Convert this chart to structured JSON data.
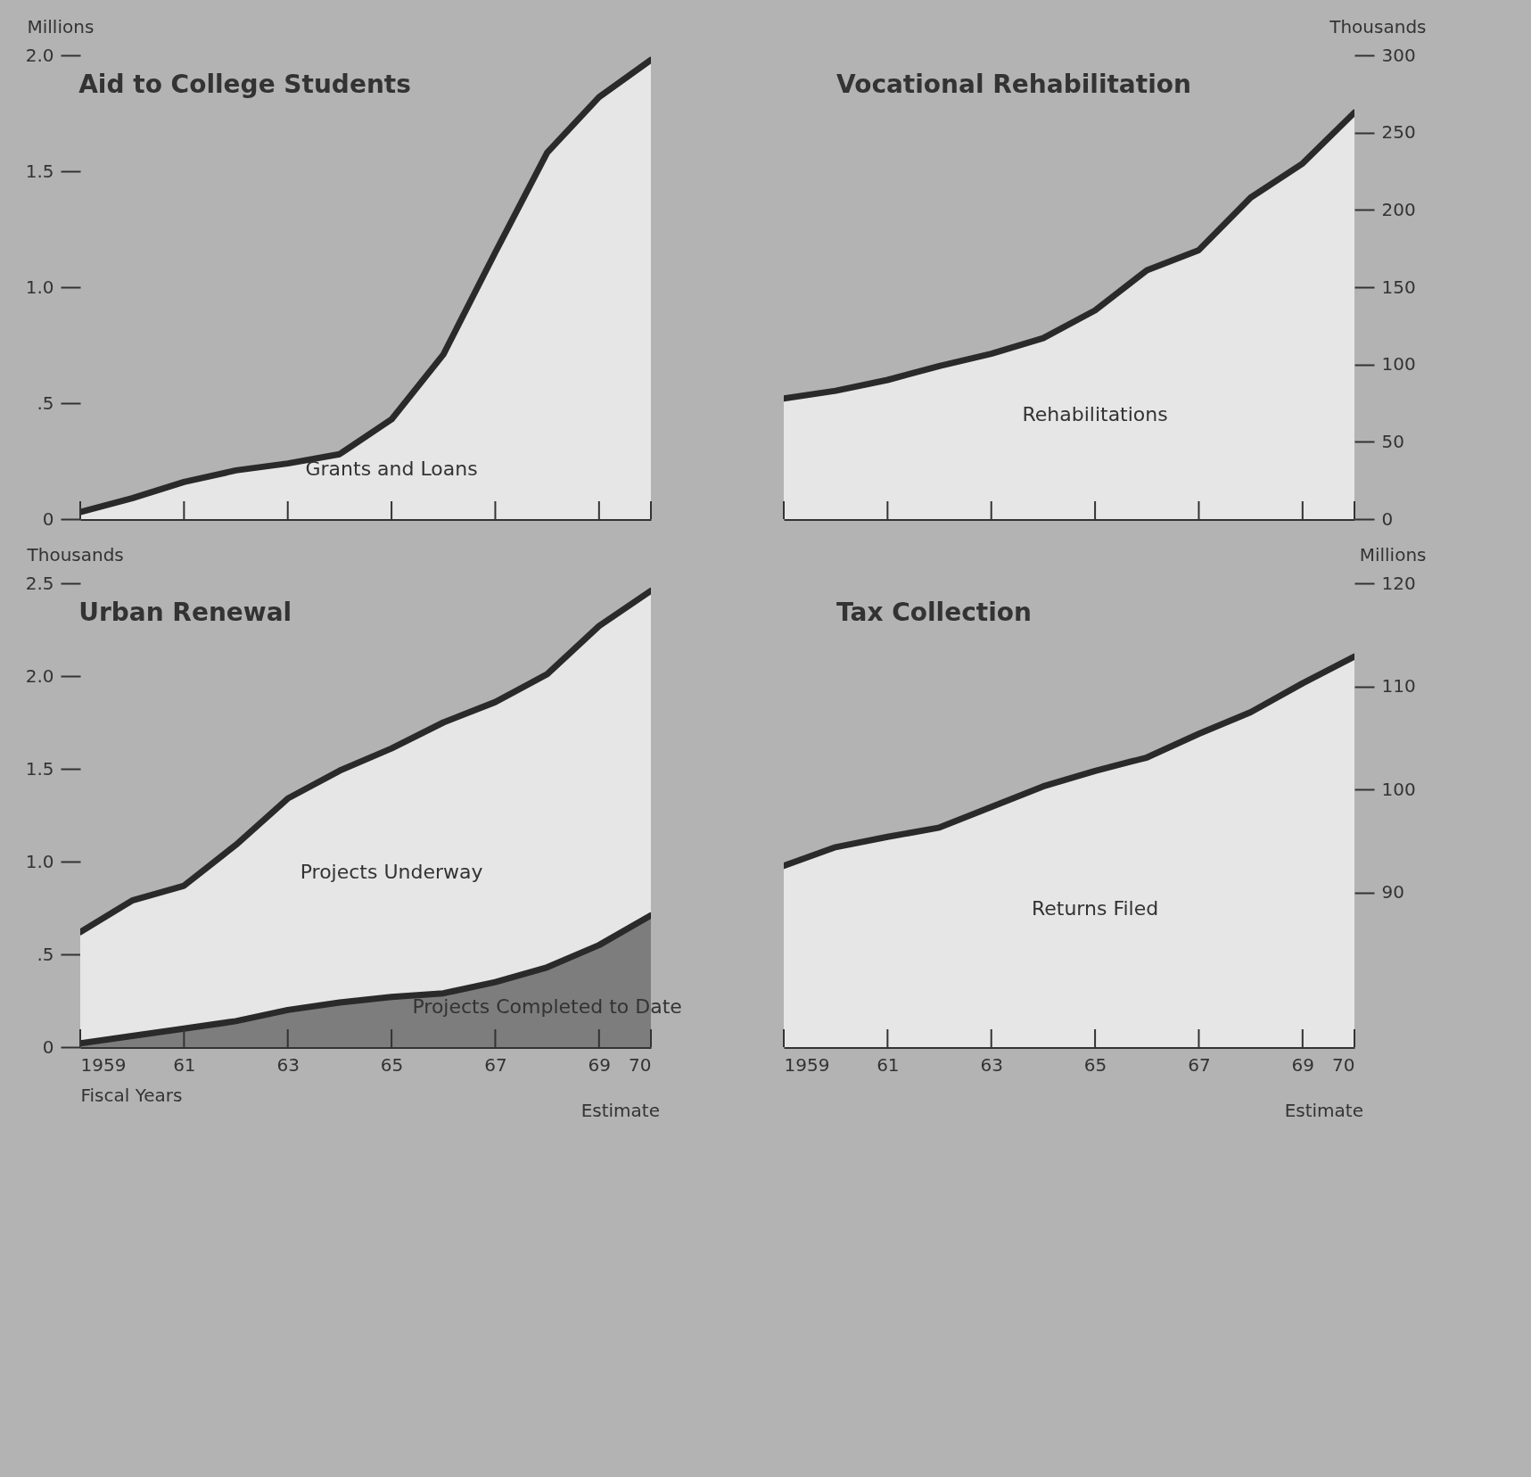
{
  "chart_data": [
    {
      "type": "area",
      "title": "Aid to College Students",
      "ylabel": "Millions",
      "x": [
        1959,
        1960,
        1961,
        1962,
        1963,
        1964,
        1965,
        1966,
        1967,
        1968,
        1969,
        1970
      ],
      "series": [
        {
          "name": "Grants and Loans",
          "color": "#e6e6e6",
          "values": [
            0.03,
            0.09,
            0.16,
            0.21,
            0.24,
            0.28,
            0.43,
            0.71,
            1.15,
            1.58,
            1.82,
            1.98
          ]
        }
      ],
      "xlim": [
        1959,
        1970
      ],
      "xticks": [
        1959,
        1961,
        1963,
        1965,
        1967,
        1969,
        1970
      ],
      "ylim": [
        0,
        2.0
      ],
      "yticks": [
        {
          "value": 0,
          "label": "0"
        },
        {
          "value": 0.5,
          "label": ".5"
        },
        {
          "value": 1.0,
          "label": "1.0"
        },
        {
          "value": 1.5,
          "label": "1.5"
        },
        {
          "value": 2.0,
          "label": "2.0"
        }
      ],
      "tick_labels": "y"
    },
    {
      "type": "area",
      "title": "Vocational Rehabilitation",
      "ylabel": "Thousands",
      "x": [
        1959,
        1960,
        1961,
        1962,
        1963,
        1964,
        1965,
        1966,
        1967,
        1968,
        1969,
        1970
      ],
      "series": [
        {
          "name": "Rehabilitations",
          "color": "#e6e6e6",
          "values": [
            78,
            83,
            90,
            99,
            107,
            117,
            135,
            161,
            174,
            208,
            230,
            263
          ]
        }
      ],
      "xlim": [
        1959,
        1970
      ],
      "xticks": [
        1959,
        1961,
        1963,
        1965,
        1967,
        1969,
        1970
      ],
      "ylim": [
        0,
        300
      ],
      "yticks": [
        0,
        50,
        100,
        150,
        200,
        250,
        300
      ],
      "tick_labels": "y"
    },
    {
      "type": "area",
      "title": "Urban Renewal",
      "ylabel": "Thousands",
      "xlabel": "Fiscal Years",
      "x": [
        1959,
        1960,
        1961,
        1962,
        1963,
        1964,
        1965,
        1966,
        1967,
        1968,
        1969,
        1970
      ],
      "series": [
        {
          "name": "Projects Underway",
          "color": "#e6e6e6",
          "values": [
            0.62,
            0.79,
            0.87,
            1.09,
            1.34,
            1.49,
            1.61,
            1.75,
            1.86,
            2.01,
            2.27,
            2.46
          ]
        },
        {
          "name": "Projects Completed to Date",
          "color": "#7d7d7d",
          "values": [
            0.02,
            0.06,
            0.1,
            0.14,
            0.2,
            0.24,
            0.27,
            0.29,
            0.35,
            0.43,
            0.55,
            0.71
          ]
        }
      ],
      "xlim": [
        1959,
        1970
      ],
      "xticks": [
        {
          "value": 1959,
          "label": "1959"
        },
        {
          "value": 1961,
          "label": "61"
        },
        {
          "value": 1963,
          "label": "63"
        },
        {
          "value": 1965,
          "label": "65"
        },
        {
          "value": 1967,
          "label": "67"
        },
        {
          "value": 1969,
          "label": "69"
        },
        {
          "value": 1970,
          "label": "70"
        }
      ],
      "ylim": [
        0,
        2.5
      ],
      "yticks": [
        {
          "value": 0,
          "label": "0"
        },
        {
          "value": 0.5,
          "label": ".5"
        },
        {
          "value": 1.0,
          "label": "1.0"
        },
        {
          "value": 1.5,
          "label": "1.5"
        },
        {
          "value": 2.0,
          "label": "2.0"
        },
        {
          "value": 2.5,
          "label": "2.5"
        }
      ],
      "annotations": [
        "Estimate"
      ]
    },
    {
      "type": "area",
      "title": "Tax Collection",
      "ylabel": "Millions",
      "x": [
        1959,
        1960,
        1961,
        1962,
        1963,
        1964,
        1965,
        1966,
        1967,
        1968,
        1969,
        1970
      ],
      "series": [
        {
          "name": "Returns Filed",
          "color": "#e6e6e6",
          "values": [
            92.6,
            94.4,
            95.4,
            96.3,
            98.3,
            100.3,
            101.8,
            103.1,
            105.4,
            107.5,
            110.3,
            112.9
          ]
        }
      ],
      "xlim": [
        1959,
        1970
      ],
      "xticks": [
        {
          "value": 1959,
          "label": "1959"
        },
        {
          "value": 1961,
          "label": "61"
        },
        {
          "value": 1963,
          "label": "63"
        },
        {
          "value": 1965,
          "label": "65"
        },
        {
          "value": 1967,
          "label": "67"
        },
        {
          "value": 1969,
          "label": "69"
        },
        {
          "value": 1970,
          "label": "70"
        }
      ],
      "ylim": [
        75,
        120
      ],
      "yticks": [
        90,
        100,
        110,
        120
      ],
      "annotations": [
        "Estimate"
      ]
    }
  ]
}
